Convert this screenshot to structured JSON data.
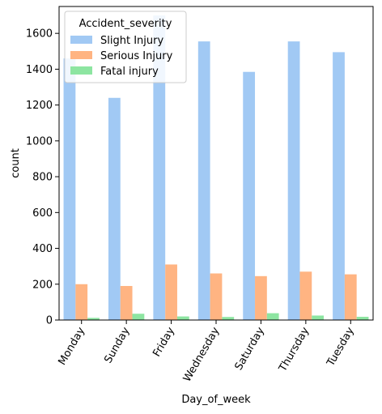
{
  "chart_data": {
    "type": "bar",
    "xlabel": "Day_of_week",
    "ylabel": "count",
    "ylim": [
      0,
      1750
    ],
    "yticks": [
      0,
      200,
      400,
      600,
      800,
      1000,
      1200,
      1400,
      1600
    ],
    "categories": [
      "Monday",
      "Sunday",
      "Friday",
      "Wednesday",
      "Saturday",
      "Thursday",
      "Tuesday"
    ],
    "legend": {
      "title": "Accident_severity",
      "placement": "top-left"
    },
    "grid": false,
    "series": [
      {
        "name": "Slight Injury",
        "color": "#a1c9f4",
        "values": [
          1460,
          1240,
          1700,
          1555,
          1385,
          1555,
          1495
        ]
      },
      {
        "name": "Serious Injury",
        "color": "#ffb482",
        "values": [
          200,
          190,
          310,
          260,
          245,
          270,
          255
        ]
      },
      {
        "name": "Fatal injury",
        "color": "#8de5a1",
        "values": [
          12,
          35,
          20,
          17,
          38,
          25,
          18
        ]
      }
    ]
  }
}
